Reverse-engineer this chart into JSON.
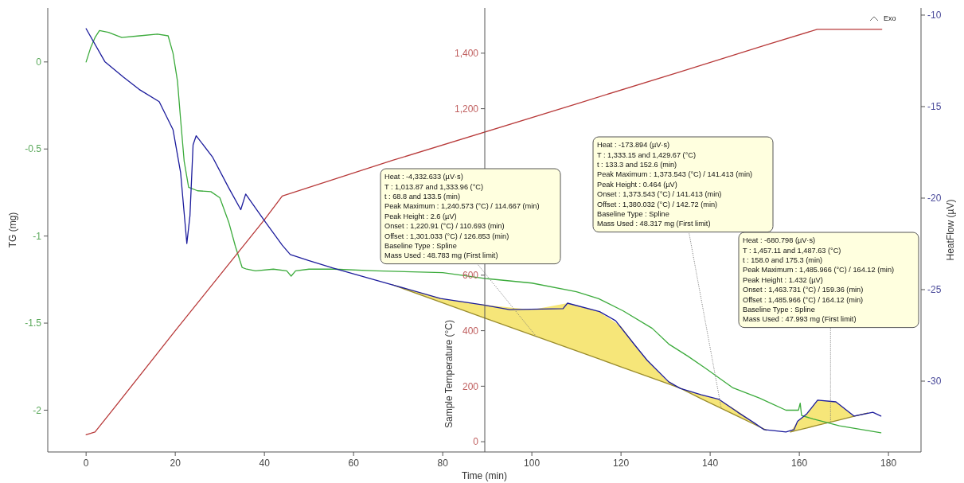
{
  "chart_data": {
    "type": "line",
    "xlabel": "Time (min)",
    "ylabel": "TG (mg)",
    "y2label": "Sample Temperature (°C)",
    "y3label": "HeatFlow (µV)",
    "xlim": [
      -8.6,
      187.3
    ],
    "xticks": [
      0,
      20,
      40,
      60,
      80,
      100,
      120,
      140,
      160,
      180
    ],
    "ylim": [
      -2.24,
      0.31
    ],
    "yticks": [
      -2,
      -1.5,
      -1,
      -0.5,
      0
    ],
    "y2lim": [
      -37,
      1563
    ],
    "y2ticks": [
      0,
      200,
      400,
      600,
      {
        "value": 1200,
        "label": "1,200"
      },
      {
        "value": 1400,
        "label": "1,400"
      }
    ],
    "y3lim": [
      -33.87,
      -9.61
    ],
    "y3ticks": [
      -30,
      -25,
      -20,
      -15,
      -10
    ],
    "series": [
      {
        "axis": "y",
        "color": "#3cab3c",
        "x": [
          0,
          1,
          2,
          3,
          5,
          8,
          12,
          16,
          18.4,
          19.5,
          20.5,
          21.2,
          22,
          23,
          25,
          28,
          30,
          32,
          33.5,
          35,
          36,
          38,
          42,
          45,
          46,
          47,
          50,
          55.7,
          65,
          80,
          90,
          100,
          110,
          115,
          120.5,
          127,
          130.7,
          135,
          139,
          145,
          151,
          157,
          159.8,
          160.2,
          160.5,
          163,
          169,
          178.3
        ],
        "values": [
          0,
          0.08,
          0.14,
          0.18,
          0.17,
          0.14,
          0.15,
          0.16,
          0.15,
          0.05,
          -0.11,
          -0.33,
          -0.57,
          -0.72,
          -0.74,
          -0.745,
          -0.78,
          -0.92,
          -1.06,
          -1.18,
          -1.19,
          -1.2,
          -1.19,
          -1.2,
          -1.23,
          -1.2,
          -1.19,
          -1.19,
          -1.2,
          -1.21,
          -1.245,
          -1.27,
          -1.32,
          -1.36,
          -1.43,
          -1.53,
          -1.62,
          -1.69,
          -1.76,
          -1.87,
          -1.93,
          -2.0,
          -2.0,
          -1.96,
          -2.03,
          -2.05,
          -2.09,
          -2.13
        ]
      },
      {
        "axis": "y2",
        "color": "#b83a3a",
        "x": [
          0,
          2,
          5,
          20,
          40,
          44,
          68.8,
          110.7,
          133.5,
          152.6,
          164,
          178.5
        ],
        "values": [
          25,
          35,
          95,
          400,
          800,
          885,
          1014,
          1221,
          1334,
          1430,
          1486,
          1486
        ]
      },
      {
        "axis": "y3",
        "color": "#1c1c9c",
        "x": [
          0,
          4.2,
          8.4,
          11.9,
          16.4,
          19.5,
          21.2,
          22.6,
          23.3,
          24,
          24.7,
          28.4,
          32,
          34.7,
          35.8,
          40.2,
          44,
          45.8,
          49.9,
          55.7,
          68.8,
          79.5,
          89,
          95,
          107,
          108,
          115.2,
          118.8,
          123,
          125.9,
          130.7,
          133.3,
          138,
          142,
          146.2,
          150,
          152.1,
          157,
          158.8,
          159.6,
          161.7,
          164.1,
          168.2,
          172.3,
          176.5,
          178.3
        ],
        "values": [
          -10.74,
          -12.54,
          -13.39,
          -14.06,
          -14.73,
          -16.26,
          -18.6,
          -22.48,
          -20.96,
          -17.09,
          -16.59,
          -17.77,
          -19.44,
          -20.63,
          -19.78,
          -21.3,
          -22.57,
          -23.08,
          -23.41,
          -23.84,
          -24.74,
          -25.48,
          -25.83,
          -26.09,
          -26.04,
          -25.74,
          -26.2,
          -26.7,
          -28.0,
          -28.87,
          -30.04,
          -30.4,
          -30.75,
          -31.0,
          -31.7,
          -32.3,
          -32.65,
          -32.78,
          -32.65,
          -32.2,
          -31.78,
          -31.04,
          -31.13,
          -31.91,
          -31.7,
          -31.91
        ]
      },
      {
        "axis": "y3",
        "color": "#9a8c2c",
        "x": [
          68.8,
          80,
          90,
          100,
          108,
          115,
          120,
          125,
          130,
          133.4,
          138,
          142,
          146,
          150,
          152.6
        ],
        "values": [
          -24.74,
          -25.72,
          -26.6,
          -27.47,
          -28.17,
          -28.78,
          -29.22,
          -29.66,
          -30.09,
          -30.4,
          -30.96,
          -31.43,
          -31.9,
          -32.37,
          -32.68
        ],
        "lower": [
          -24.74,
          -25.72,
          -26.6,
          -27.47,
          -28.17,
          -28.78,
          -29.22,
          -29.66,
          -30.09,
          -30.4,
          -30.96,
          -31.43,
          -31.9,
          -32.37,
          -32.68
        ],
        "upper": [
          -24.74,
          -25.5,
          -25.85,
          -26.1,
          -25.74,
          -26.2,
          -27.0,
          -28.6,
          -29.9,
          -30.4,
          -30.75,
          -31.0,
          -31.6,
          -32.3,
          -32.68
        ]
      },
      {
        "axis": "y3",
        "color": "#9a8c2c",
        "x": [
          158,
          159.6,
          161.7,
          164.1,
          168.2,
          172.3,
          175.3
        ],
        "values": [
          -32.78,
          -32.68,
          -32.56,
          -32.41,
          -32.17,
          -31.92,
          -31.74
        ],
        "lower": [
          -32.78,
          -32.68,
          -32.56,
          -32.41,
          -32.17,
          -31.92,
          -31.74
        ],
        "upper": [
          -32.78,
          -32.2,
          -31.78,
          -31.04,
          -31.13,
          -31.91,
          -31.74
        ]
      }
    ],
    "annotations": [
      "Heat :  -4,332.633 (µV·s)",
      "T : 1,013.87 and 1,333.96 (°C)",
      "t : 68.8 and 133.5 (min)",
      "Peak Maximum :  1,240.573 (°C) / 114.667 (min)",
      "Peak Height :  2.6 (µV)",
      "Onset :  1,220.91 (°C) / 110.693 (min)",
      "Offset :  1,301.033 (°C) / 126.853 (min)",
      "Baseline Type :  Spline",
      {
        "text": "Mass Used :  48.783 mg (First limit)",
        "x": 101,
        "y": -1.577
      },
      "Heat :  -173.894 (µV·s)",
      "T : 1,333.15 and 1,429.67 (°C)",
      "t : 133.3 and 152.6 (min)",
      "Peak Maximum :  1,373.543 (°C) / 141.413 (min)",
      "Peak Height :  0.464 (µV)",
      "Onset :  1,373.543 (°C) / 141.413 (min)",
      "Offset :  1,380.032 (°C) / 142.72 (min)",
      "Baseline Type :  Spline",
      {
        "text": "Mass Used :  48.317 mg (First limit)",
        "x": 142.5,
        "y": -1.99
      },
      "Heat :  -680.798 (µV·s)",
      "T : 1,457.11 and 1,487.63 (°C)",
      "t : 158.0 and 175.3 (min)",
      "Peak Maximum :  1,485.966 (°C) / 164.12 (min)",
      "Peak Height :  1.432 (µV)",
      "Onset :  1,463.731 (°C) / 159.36 (min)",
      "Offset :  1,485.966 (°C) / 164.12 (min)",
      "Baseline Type :  Spline",
      {
        "text": "Mass Used :  47.993 mg (First limit)",
        "x": 167,
        "y": -2.069
      },
      "Exo"
    ]
  }
}
